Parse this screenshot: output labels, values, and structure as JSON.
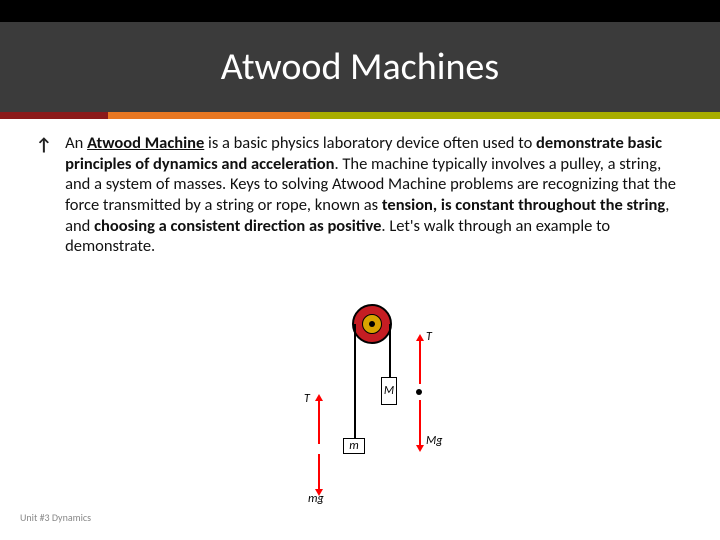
{
  "header": {
    "title": "Atwood Machines",
    "band_bg": "#3b3b3b",
    "top_bar_bg": "#000000",
    "title_color": "#ffffff",
    "title_fontsize": 38,
    "stripe": [
      {
        "color": "#8b1a1a",
        "width_pct": 15
      },
      {
        "color": "#e87722",
        "width_pct": 28
      },
      {
        "color": "#a8ad00",
        "width_pct": 57
      }
    ]
  },
  "body": {
    "bullet_glyph": "↗",
    "text_fontsize": 16.5,
    "text_color": "#111111",
    "runs": [
      {
        "t": "An ",
        "b": false,
        "u": false
      },
      {
        "t": "Atwood Machine",
        "b": true,
        "u": true
      },
      {
        "t": " is a basic physics laboratory device often used to ",
        "b": false,
        "u": false
      },
      {
        "t": "demonstrate basic principles of dynamics and acceleration",
        "b": true,
        "u": false
      },
      {
        "t": ". The machine typically involves a pulley, a string, and a system of masses. Keys to solving Atwood Machine problems are recognizing that the force transmitted by a string or rope, known as ",
        "b": false,
        "u": false
      },
      {
        "t": "tension, is constant throughout the string",
        "b": true,
        "u": false
      },
      {
        "t": ", and ",
        "b": false,
        "u": false
      },
      {
        "t": "choosing a consistent direction as positive",
        "b": true,
        "u": false
      },
      {
        "t": ". Let's walk through an example to demonstrate.",
        "b": false,
        "u": false
      }
    ]
  },
  "diagram": {
    "pulley": {
      "outer_color": "#c51d23",
      "inner_color": "#d9a300",
      "border_color": "#000000"
    },
    "arrow_color": "#ff0000",
    "string_color": "#000000",
    "labels": {
      "T_right": "T",
      "T_left": "T",
      "M": "M",
      "Mg": "Mg",
      "m": "m",
      "mg": "mg"
    },
    "label_fontsize": 12
  },
  "footer": {
    "text": "Unit #3 Dynamics",
    "fontsize": 10,
    "color": "#888888"
  }
}
